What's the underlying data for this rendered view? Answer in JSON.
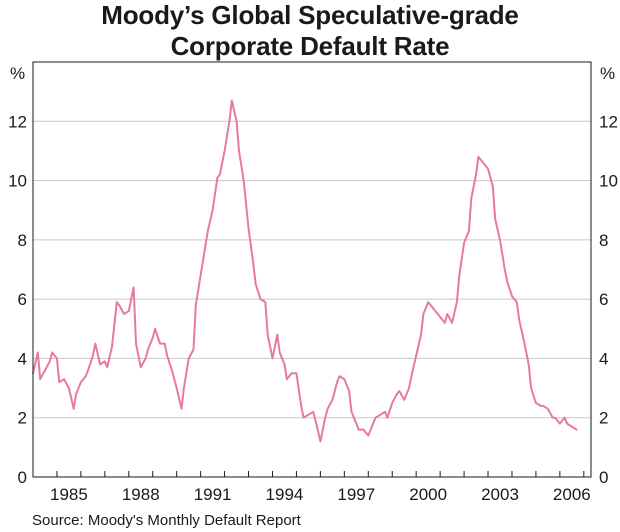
{
  "header": {
    "title_line1": "Moody’s Global Speculative-grade",
    "title_line2": "Corporate Default Rate"
  },
  "footer": {
    "source": "Source: Moody's Monthly Default Report"
  },
  "colors": {
    "series": "#e8799f",
    "grid": "#c8c8c8",
    "frame": "#1a1a1a"
  },
  "chart_data": {
    "type": "line",
    "title": "Moody’s Global Speculative-grade Corporate Default Rate",
    "xlabel": "",
    "ylabel": "%",
    "ylabel_right": "%",
    "xlim": [
      1983,
      2006.3
    ],
    "ylim": [
      0,
      14
    ],
    "y_ticks": [
      0,
      2,
      4,
      6,
      8,
      10,
      12
    ],
    "x_ticks": [
      1985,
      1988,
      1991,
      1994,
      1997,
      2000,
      2003,
      2006
    ],
    "grid": true,
    "series": [
      {
        "name": "Global speculative-grade default rate",
        "x": [
          1983.0,
          1983.2,
          1983.3,
          1983.5,
          1983.7,
          1983.8,
          1984.0,
          1984.1,
          1984.3,
          1984.5,
          1984.7,
          1984.8,
          1985.0,
          1985.2,
          1985.3,
          1985.5,
          1985.6,
          1985.8,
          1986.0,
          1986.1,
          1986.3,
          1986.5,
          1986.6,
          1986.8,
          1987.0,
          1987.2,
          1987.3,
          1987.5,
          1987.7,
          1987.8,
          1988.0,
          1988.1,
          1988.3,
          1988.5,
          1988.6,
          1988.8,
          1989.0,
          1989.2,
          1989.3,
          1989.5,
          1989.7,
          1989.8,
          1990.0,
          1990.2,
          1990.3,
          1990.5,
          1990.7,
          1990.8,
          1991.0,
          1991.2,
          1991.3,
          1991.5,
          1991.6,
          1991.8,
          1992.0,
          1992.2,
          1992.3,
          1992.5,
          1992.7,
          1992.8,
          1993.0,
          1993.2,
          1993.3,
          1993.5,
          1993.6,
          1993.8,
          1994.0,
          1994.2,
          1994.3,
          1994.5,
          1994.7,
          1994.8,
          1995.0,
          1995.2,
          1995.3,
          1995.5,
          1995.7,
          1995.8,
          1996.0,
          1996.2,
          1996.3,
          1996.5,
          1996.6,
          1996.8,
          1997.0,
          1997.2,
          1997.3,
          1997.5,
          1997.7,
          1997.8,
          1998.0,
          1998.2,
          1998.3,
          1998.5,
          1998.7,
          1998.8,
          1999.0,
          1999.2,
          1999.3,
          1999.5,
          1999.7,
          1999.8,
          2000.0,
          2000.2,
          2000.3,
          2000.5,
          2000.7,
          2000.8,
          2001.0,
          2001.2,
          2001.3,
          2001.5,
          2001.6,
          2001.8,
          2002.0,
          2002.2,
          2002.3,
          2002.5,
          2002.7,
          2002.8,
          2003.0,
          2003.2,
          2003.3,
          2003.5,
          2003.7,
          2003.8,
          2004.0,
          2004.2,
          2004.3,
          2004.5,
          2004.7,
          2004.8,
          2005.0,
          2005.2,
          2005.3,
          2005.5,
          2005.7
        ],
        "values": [
          3.5,
          4.2,
          3.3,
          3.6,
          3.9,
          4.2,
          4.0,
          3.2,
          3.3,
          3.0,
          2.3,
          2.8,
          3.2,
          3.4,
          3.6,
          4.1,
          4.5,
          3.8,
          3.9,
          3.7,
          4.4,
          5.9,
          5.8,
          5.5,
          5.6,
          6.4,
          4.5,
          3.7,
          4.0,
          4.3,
          4.7,
          5.0,
          4.5,
          4.5,
          4.1,
          3.6,
          3.0,
          2.3,
          3.0,
          4.0,
          4.3,
          5.8,
          6.8,
          7.8,
          8.3,
          9.0,
          10.1,
          10.2,
          11.0,
          12.0,
          12.7,
          12.0,
          11.0,
          10.0,
          8.4,
          7.2,
          6.5,
          6.0,
          5.9,
          4.8,
          4.0,
          4.8,
          4.2,
          3.8,
          3.3,
          3.5,
          3.5,
          2.4,
          2.0,
          2.1,
          2.2,
          1.9,
          1.2,
          2.0,
          2.3,
          2.6,
          3.2,
          3.4,
          3.3,
          2.9,
          2.2,
          1.8,
          1.6,
          1.6,
          1.4,
          1.8,
          2.0,
          2.1,
          2.2,
          2.0,
          2.5,
          2.8,
          2.9,
          2.6,
          3.0,
          3.4,
          4.1,
          4.8,
          5.5,
          5.9,
          5.7,
          5.6,
          5.4,
          5.2,
          5.5,
          5.2,
          5.9,
          6.8,
          7.9,
          8.3,
          9.4,
          10.2,
          10.8,
          10.6,
          10.4,
          9.8,
          8.7,
          8.0,
          7.0,
          6.6,
          6.1,
          5.9,
          5.3,
          4.6,
          3.8,
          3.0,
          2.5,
          2.4,
          2.4,
          2.3,
          2.0,
          2.0,
          1.8,
          2.0,
          1.8,
          1.7,
          1.6
        ]
      }
    ]
  }
}
